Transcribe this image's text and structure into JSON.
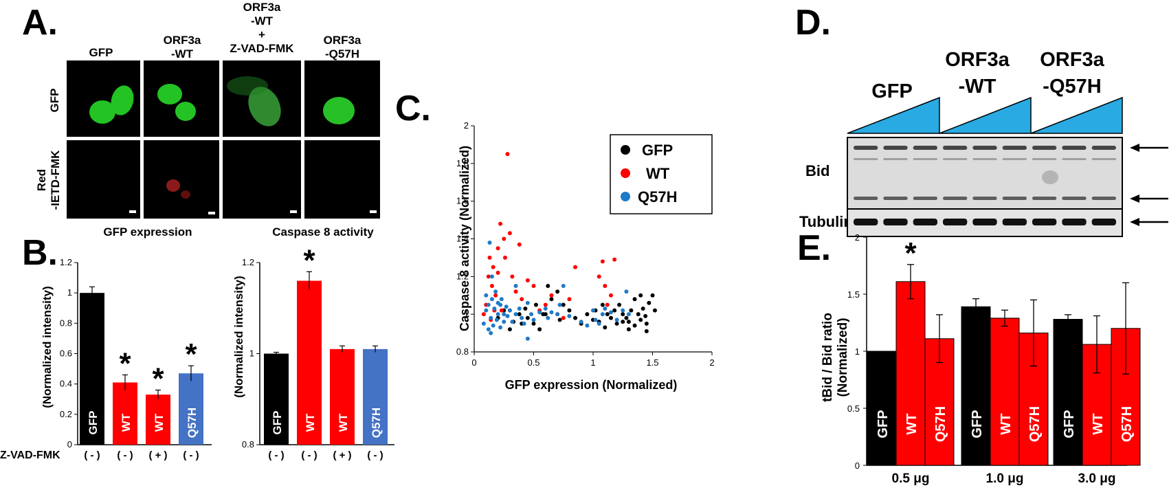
{
  "panels": {
    "a": "A.",
    "b": "B.",
    "c": "C.",
    "d": "D.",
    "e": "E."
  },
  "panel_a": {
    "columns": [
      "GFP",
      "ORF3a",
      "-WT",
      "ORF3a",
      "-WT",
      "+",
      "Z-VAD-FMK",
      "ORF3a",
      "-Q57H"
    ],
    "rows": [
      "GFP",
      "Red",
      "-IETD-FMK"
    ]
  },
  "panel_b": {
    "left_title": "GFP expression",
    "right_title": "Caspase 8 activity",
    "ylabel": "(Normalized intensity)",
    "treatment_label": "Z-VAD-FMK",
    "treatments": [
      "( - )",
      "( - )",
      "( + )",
      "( - )"
    ],
    "star": "*"
  },
  "panel_c": {
    "legend": [
      "GFP",
      "WT",
      "Q57H"
    ],
    "xlabel": "GFP expression (Normalized)",
    "ylabel": "Caspase 8 activity (Normalized)"
  },
  "panel_d": {
    "groups": [
      "GFP",
      "ORF3a",
      "-WT",
      "ORF3a",
      "-Q57H"
    ],
    "rows": [
      "Bid",
      "Tubulin"
    ]
  },
  "panel_e": {
    "ylabel": "tBid / Bid ratio",
    "ylabel2": "(Normalized)",
    "dose_labels": [
      "0.5 μg",
      "1.0 μg",
      "3.0 μg"
    ],
    "star": "*"
  },
  "colors": {
    "gfp": "#000000",
    "wt": "#ff0000",
    "q57h": "#4472c4",
    "cyan": "#29aae2",
    "scatter_blue": "#1f7ac8"
  },
  "chart_data": [
    {
      "type": "bar",
      "panel": "B-left",
      "title": "GFP expression",
      "ylabel": "(Normalized intensity)",
      "categories": [
        "GFP",
        "WT",
        "WT",
        "Q57H"
      ],
      "values": [
        1.0,
        0.41,
        0.33,
        0.47
      ],
      "errors": [
        0.04,
        0.05,
        0.03,
        0.05
      ],
      "significant": [
        false,
        true,
        true,
        true
      ],
      "colors": [
        "#000000",
        "#ff0000",
        "#ff0000",
        "#4472c4"
      ],
      "yticks": [
        "0",
        "0.2",
        "0.4",
        "0.6",
        "0.8",
        "1",
        "1.2"
      ],
      "ylim": [
        0,
        1.2
      ]
    },
    {
      "type": "bar",
      "panel": "B-right",
      "title": "Caspase 8 activity",
      "ylabel": "(Normalized intensity)",
      "categories": [
        "GFP",
        "WT",
        "WT",
        "Q57H"
      ],
      "values": [
        1.0,
        1.16,
        1.01,
        1.01
      ],
      "errors": [
        0.003,
        0.02,
        0.007,
        0.007
      ],
      "significant": [
        false,
        true,
        false,
        false
      ],
      "colors": [
        "#000000",
        "#ff0000",
        "#ff0000",
        "#4472c4"
      ],
      "yticks": [
        "0.8",
        "1",
        "1.2"
      ],
      "ylim": [
        0.8,
        1.2
      ]
    },
    {
      "type": "scatter",
      "panel": "C",
      "xlabel": "GFP expression (Normalized)",
      "ylabel": "Caspase 8 activity (Normalized)",
      "xlim": [
        0,
        2
      ],
      "ylim": [
        0.8,
        2
      ],
      "xticks": [
        "0",
        "0.5",
        "1",
        "1.5",
        "2"
      ],
      "yticks": [
        "0.8",
        "1",
        "1.2",
        "1.4",
        "1.6",
        "1.8",
        "2"
      ],
      "series": [
        {
          "name": "GFP",
          "color": "#000000",
          "points": [
            [
              0.2,
              0.98
            ],
            [
              0.25,
              1.02
            ],
            [
              0.3,
              0.92
            ],
            [
              0.33,
              0.96
            ],
            [
              0.38,
              1.0
            ],
            [
              0.4,
              0.95
            ],
            [
              0.43,
              1.03
            ],
            [
              0.45,
              0.98
            ],
            [
              0.5,
              0.95
            ],
            [
              0.52,
              1.05
            ],
            [
              0.55,
              0.92
            ],
            [
              0.58,
              1.0
            ],
            [
              0.62,
              1.15
            ],
            [
              0.65,
              1.08
            ],
            [
              0.7,
              1.12
            ],
            [
              0.72,
              0.97
            ],
            [
              0.75,
              1.05
            ],
            [
              0.8,
              1.02
            ],
            [
              0.9,
              0.95
            ],
            [
              0.95,
              1.0
            ],
            [
              1.0,
              0.97
            ],
            [
              1.02,
              1.02
            ],
            [
              1.05,
              0.96
            ],
            [
              1.08,
              1.05
            ],
            [
              1.1,
              0.93
            ],
            [
              1.12,
              1.0
            ],
            [
              1.15,
              0.98
            ],
            [
              1.18,
              1.02
            ],
            [
              1.2,
              0.95
            ],
            [
              1.22,
              1.05
            ],
            [
              1.25,
              1.0
            ],
            [
              1.28,
              0.98
            ],
            [
              1.3,
              0.96
            ],
            [
              1.32,
              1.02
            ],
            [
              1.35,
              0.94
            ],
            [
              1.38,
              1.0
            ],
            [
              1.4,
              0.97
            ],
            [
              1.42,
              1.03
            ],
            [
              1.44,
              0.99
            ],
            [
              1.45,
              0.95
            ],
            [
              1.47,
              1.06
            ],
            [
              1.5,
              1.1
            ],
            [
              1.52,
              1.02
            ],
            [
              1.35,
              1.08
            ],
            [
              1.4,
              1.1
            ],
            [
              1.3,
              0.92
            ],
            [
              1.45,
              0.91
            ],
            [
              1.25,
              0.96
            ],
            [
              0.85,
              0.98
            ],
            [
              0.6,
              1.0
            ]
          ]
        },
        {
          "name": "WT",
          "color": "#ff0000",
          "points": [
            [
              0.08,
              1.0
            ],
            [
              0.1,
              1.05
            ],
            [
              0.12,
              1.2
            ],
            [
              0.13,
              1.3
            ],
            [
              0.15,
              1.15
            ],
            [
              0.16,
              1.25
            ],
            [
              0.18,
              1.1
            ],
            [
              0.2,
              1.22
            ],
            [
              0.2,
              1.35
            ],
            [
              0.22,
              1.48
            ],
            [
              0.23,
              1.02
            ],
            [
              0.25,
              1.4
            ],
            [
              0.26,
              1.3
            ],
            [
              0.28,
              1.85
            ],
            [
              0.3,
              1.43
            ],
            [
              0.32,
              1.2
            ],
            [
              0.35,
              1.12
            ],
            [
              0.4,
              1.08
            ],
            [
              0.45,
              1.18
            ],
            [
              0.5,
              1.15
            ],
            [
              0.55,
              1.02
            ],
            [
              0.6,
              1.05
            ],
            [
              0.65,
              1.1
            ],
            [
              0.7,
              1.0
            ],
            [
              0.75,
              0.98
            ],
            [
              0.8,
              1.08
            ],
            [
              0.85,
              1.25
            ],
            [
              0.38,
              1.37
            ],
            [
              1.05,
              1.2
            ],
            [
              1.08,
              1.28
            ],
            [
              1.1,
              1.15
            ],
            [
              1.12,
              1.05
            ],
            [
              1.15,
              1.1
            ],
            [
              1.18,
              1.29
            ],
            [
              0.14,
              0.97
            ],
            [
              0.3,
              1.02
            ],
            [
              0.17,
              1.02
            ]
          ]
        },
        {
          "name": "Q57H",
          "color": "#1f7ac8",
          "points": [
            [
              0.08,
              0.95
            ],
            [
              0.1,
              1.02
            ],
            [
              0.1,
              1.1
            ],
            [
              0.12,
              0.92
            ],
            [
              0.12,
              1.05
            ],
            [
              0.13,
              1.38
            ],
            [
              0.14,
              0.98
            ],
            [
              0.15,
              1.08
            ],
            [
              0.15,
              1.2
            ],
            [
              0.16,
              0.94
            ],
            [
              0.17,
              1.03
            ],
            [
              0.18,
              1.12
            ],
            [
              0.19,
              0.97
            ],
            [
              0.2,
              1.0
            ],
            [
              0.2,
              1.06
            ],
            [
              0.22,
              0.93
            ],
            [
              0.22,
              1.05
            ],
            [
              0.23,
              1.08
            ],
            [
              0.25,
              1.0
            ],
            [
              0.25,
              0.96
            ],
            [
              0.27,
              1.04
            ],
            [
              0.28,
              0.99
            ],
            [
              0.3,
              1.02
            ],
            [
              0.32,
              0.96
            ],
            [
              0.35,
              1.0
            ],
            [
              0.38,
              1.03
            ],
            [
              0.4,
              0.98
            ],
            [
              0.42,
              0.95
            ],
            [
              0.45,
              1.06
            ],
            [
              0.48,
              1.0
            ],
            [
              0.5,
              0.97
            ],
            [
              0.55,
              1.01
            ],
            [
              0.6,
              1.03
            ],
            [
              0.62,
              0.98
            ],
            [
              0.65,
              1.01
            ],
            [
              0.7,
              1.0
            ],
            [
              0.72,
              1.05
            ],
            [
              0.75,
              1.15
            ],
            [
              0.8,
              0.99
            ],
            [
              0.9,
              0.96
            ],
            [
              0.95,
              0.94
            ],
            [
              1.0,
              1.02
            ],
            [
              1.02,
              0.97
            ],
            [
              1.05,
              0.95
            ],
            [
              1.08,
              1.0
            ],
            [
              1.1,
              1.03
            ],
            [
              1.15,
              1.01
            ],
            [
              1.2,
              0.97
            ],
            [
              1.25,
              1.02
            ],
            [
              1.28,
              1.12
            ],
            [
              1.3,
              1.0
            ],
            [
              0.45,
              0.87
            ],
            [
              0.14,
              0.9
            ],
            [
              0.35,
              1.15
            ]
          ]
        }
      ]
    },
    {
      "type": "bar",
      "panel": "E",
      "ylabel": "tBid / Bid ratio (Normalized)",
      "categories": [
        "0.5 μg",
        "1.0 μg",
        "3.0 μg"
      ],
      "series": [
        {
          "name": "GFP",
          "color": "#000000",
          "values": [
            1.0,
            1.39,
            1.28
          ],
          "errors": [
            0,
            0.07,
            0.04
          ]
        },
        {
          "name": "WT",
          "color": "#ff0000",
          "values": [
            1.61,
            1.29,
            1.06
          ],
          "errors": [
            0.15,
            0.07,
            0.25
          ]
        },
        {
          "name": "Q57H",
          "color": "#ff0000",
          "values": [
            1.11,
            1.16,
            1.2
          ],
          "errors": [
            0.21,
            0.29,
            0.4
          ]
        }
      ],
      "significant": [
        [
          false,
          true,
          false
        ],
        [
          false,
          false,
          false
        ],
        [
          false,
          false,
          false
        ]
      ],
      "yticks": [
        "0",
        "0.5",
        "1",
        "1.5",
        "2"
      ],
      "ylim": [
        0,
        2
      ]
    }
  ]
}
